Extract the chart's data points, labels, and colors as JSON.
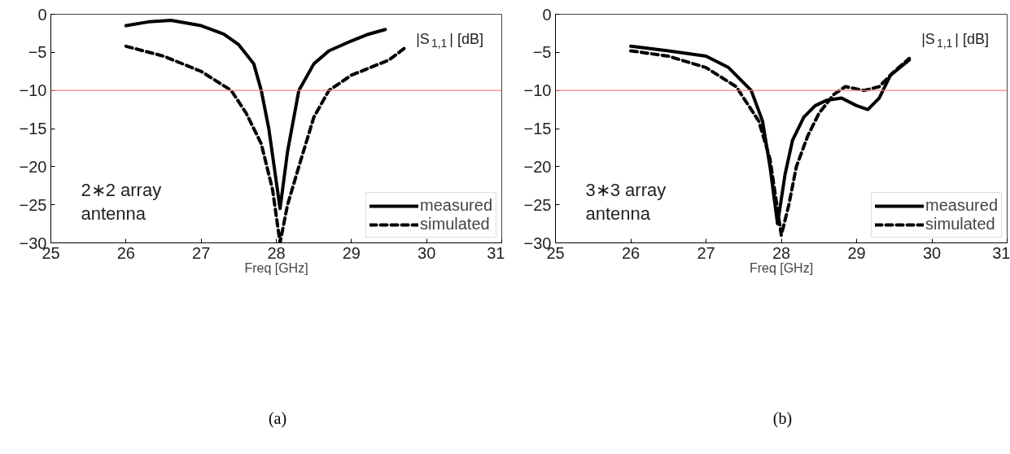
{
  "chart_data": [
    {
      "type": "line",
      "xlabel": "Freq [GHz]",
      "ylabel": "|S$_{1,1}$| [dB]",
      "xlim": [
        25,
        31
      ],
      "ylim": [
        -30,
        0
      ],
      "xticks": [
        25,
        26,
        27,
        28,
        29,
        30,
        31
      ],
      "yticks": [
        0,
        -5,
        -10,
        -15,
        -20,
        -25,
        -30
      ],
      "grid": false,
      "legend": "bottom right",
      "series": [
        {
          "name": "measured",
          "color": "#000000",
          "line_style": "solid",
          "x": [
            26,
            26.3,
            26.6,
            27,
            27.3,
            27.5,
            27.7,
            27.8,
            27.9,
            28.0,
            28.05,
            28.15,
            28.3,
            28.5,
            28.7,
            29,
            29.2,
            29.45
          ],
          "values": [
            -1.5,
            -1.0,
            -0.8,
            -1.5,
            -2.6,
            -4,
            -6.5,
            -10,
            -15,
            -22,
            -25.5,
            -18,
            -10,
            -6.5,
            -4.8,
            -3.5,
            -2.7,
            -2
          ]
        },
        {
          "name": "simulated",
          "color": "#000000",
          "line_style": "dashed",
          "x": [
            26,
            26.5,
            27,
            27.4,
            27.6,
            27.8,
            27.95,
            28.05,
            28.15,
            28.3,
            28.5,
            28.7,
            29,
            29.3,
            29.5,
            29.7
          ],
          "values": [
            -4.2,
            -5.5,
            -7.5,
            -10,
            -13,
            -17,
            -23,
            -30,
            -25,
            -20,
            -13.5,
            -10,
            -8,
            -6.8,
            -6,
            -4.5
          ]
        }
      ],
      "ref_lines": [
        {
          "axis": "y",
          "value": -10,
          "color": "#ff8080"
        }
      ],
      "annotations": [
        "2∗2 array\nantenna",
        "(a)"
      ]
    },
    {
      "type": "line",
      "xlabel": "Freq [GHz]",
      "ylabel": "|S$_{1,1}$| [dB]",
      "xlim": [
        25,
        31
      ],
      "ylim": [
        -30,
        0
      ],
      "xticks": [
        25,
        26,
        27,
        28,
        29,
        30,
        31
      ],
      "yticks": [
        0,
        -5,
        -10,
        -15,
        -20,
        -25,
        -30
      ],
      "grid": false,
      "legend": "bottom right",
      "series": [
        {
          "name": "measured",
          "color": "#000000",
          "line_style": "solid",
          "x": [
            26,
            26.5,
            27,
            27.3,
            27.6,
            27.75,
            27.85,
            27.95,
            28.05,
            28.15,
            28.3,
            28.45,
            28.6,
            28.8,
            29,
            29.15,
            29.3,
            29.45,
            29.6,
            29.7
          ],
          "values": [
            -4.2,
            -4.8,
            -5.5,
            -7,
            -10,
            -14,
            -20,
            -27.5,
            -21,
            -16.5,
            -13.5,
            -12,
            -11.3,
            -11,
            -12,
            -12.5,
            -11,
            -8,
            -6.8,
            -6
          ]
        },
        {
          "name": "simulated",
          "color": "#000000",
          "line_style": "dashed",
          "x": [
            26,
            26.5,
            27,
            27.4,
            27.7,
            27.85,
            28.0,
            28.1,
            28.2,
            28.35,
            28.5,
            28.7,
            28.85,
            29.1,
            29.3,
            29.5,
            29.7
          ],
          "values": [
            -4.8,
            -5.5,
            -7,
            -9.5,
            -14,
            -19,
            -29,
            -25,
            -20,
            -16,
            -13,
            -10.5,
            -9.5,
            -10,
            -9.5,
            -7.5,
            -5.8
          ]
        }
      ],
      "ref_lines": [
        {
          "axis": "y",
          "value": -10,
          "color": "#ff8080"
        }
      ],
      "annotations": [
        "3∗3 array\nantenna",
        "(b)"
      ]
    }
  ]
}
